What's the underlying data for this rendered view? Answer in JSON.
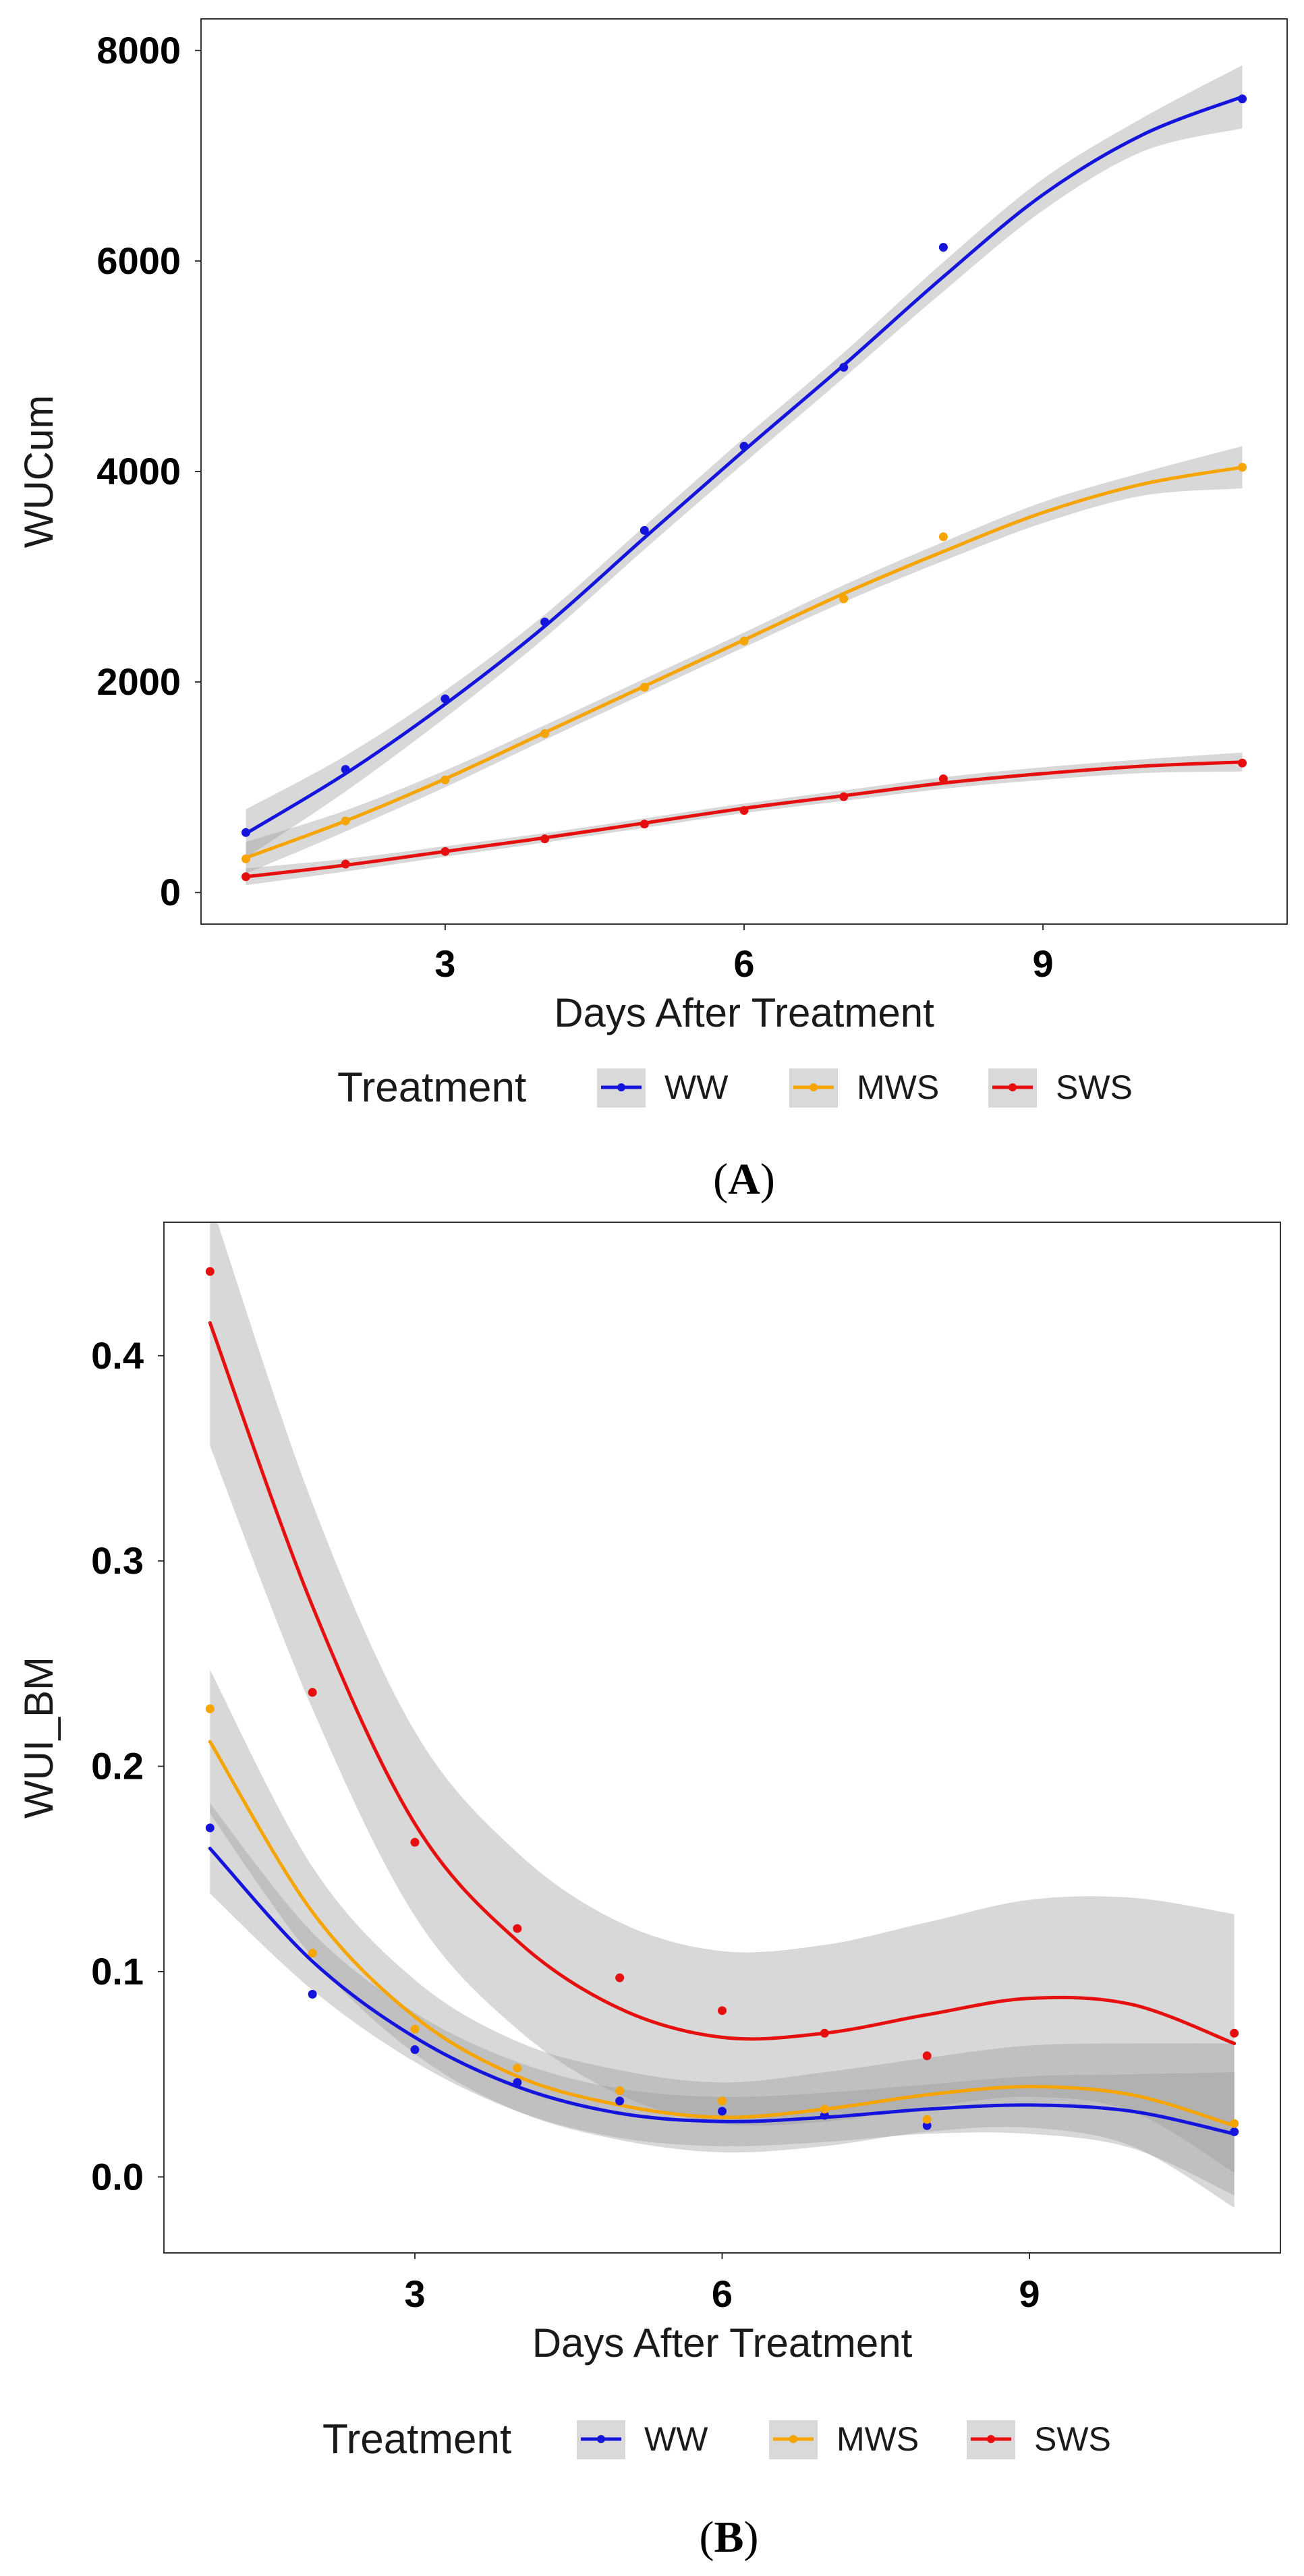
{
  "chart_data": [
    {
      "type": "line",
      "panel_label": "A",
      "xlabel": "Days After Treatment",
      "ylabel": "WUCum",
      "xlim": [
        0.55,
        11.45
      ],
      "ylim": [
        -300,
        8300
      ],
      "xticks": [
        3,
        6,
        9
      ],
      "yticks": [
        0,
        2000,
        4000,
        6000,
        8000
      ],
      "grid": false,
      "smooth": true,
      "confidence_band": true,
      "legend": {
        "title": "Treatment",
        "position": "bottom",
        "entries": [
          "WW",
          "MWS",
          "SWS"
        ]
      },
      "x": [
        1,
        2,
        3,
        4,
        5,
        6,
        7,
        8,
        11
      ],
      "series": [
        {
          "name": "WW",
          "color": "#1414dc",
          "values": [
            570,
            1170,
            1840,
            2570,
            3440,
            4240,
            4990,
            6130,
            7540
          ],
          "fit": [
            [
              1,
              560
            ],
            [
              2,
              1130
            ],
            [
              3,
              1790
            ],
            [
              4,
              2530
            ],
            [
              5,
              3370
            ],
            [
              6,
              4200
            ],
            [
              7,
              5010
            ],
            [
              8,
              5850
            ],
            [
              9,
              6630
            ],
            [
              10,
              7200
            ],
            [
              11,
              7560
            ]
          ],
          "band_half_width": [
            [
              1,
              230
            ],
            [
              2,
              170
            ],
            [
              3,
              130
            ],
            [
              4,
              110
            ],
            [
              5,
              110
            ],
            [
              6,
              120
            ],
            [
              7,
              120
            ],
            [
              8,
              140
            ],
            [
              9,
              150
            ],
            [
              10,
              160
            ],
            [
              11,
              300
            ]
          ]
        },
        {
          "name": "MWS",
          "color": "#f5a400",
          "values": [
            320,
            680,
            1070,
            1510,
            1950,
            2390,
            2790,
            3380,
            4040
          ],
          "fit": [
            [
              1,
              330
            ],
            [
              2,
              680
            ],
            [
              3,
              1080
            ],
            [
              4,
              1520
            ],
            [
              5,
              1960
            ],
            [
              6,
              2400
            ],
            [
              7,
              2840
            ],
            [
              8,
              3240
            ],
            [
              9,
              3610
            ],
            [
              10,
              3880
            ],
            [
              11,
              4040
            ]
          ],
          "band_half_width": [
            [
              1,
              150
            ],
            [
              2,
              100
            ],
            [
              3,
              80
            ],
            [
              4,
              70
            ],
            [
              5,
              70
            ],
            [
              6,
              70
            ],
            [
              7,
              80
            ],
            [
              8,
              90
            ],
            [
              9,
              100
            ],
            [
              10,
              110
            ],
            [
              11,
              200
            ]
          ]
        },
        {
          "name": "SWS",
          "color": "#e60f0f",
          "values": [
            150,
            270,
            390,
            510,
            650,
            780,
            910,
            1080,
            1230
          ],
          "fit": [
            [
              1,
              150
            ],
            [
              2,
              260
            ],
            [
              3,
              390
            ],
            [
              4,
              520
            ],
            [
              5,
              660
            ],
            [
              6,
              800
            ],
            [
              7,
              920
            ],
            [
              8,
              1040
            ],
            [
              9,
              1130
            ],
            [
              10,
              1200
            ],
            [
              11,
              1240
            ]
          ],
          "band_half_width": [
            [
              1,
              80
            ],
            [
              2,
              60
            ],
            [
              3,
              50
            ],
            [
              4,
              45
            ],
            [
              5,
              45
            ],
            [
              6,
              45
            ],
            [
              7,
              50
            ],
            [
              8,
              55
            ],
            [
              9,
              60
            ],
            [
              10,
              65
            ],
            [
              11,
              90
            ]
          ]
        }
      ]
    },
    {
      "type": "line",
      "panel_label": "B",
      "xlabel": "Days After Treatment",
      "ylabel": "WUI_BM",
      "xlim": [
        0.55,
        11.45
      ],
      "ylim": [
        -0.037,
        0.465
      ],
      "xticks": [
        3,
        6,
        9
      ],
      "yticks": [
        0.0,
        0.1,
        0.2,
        0.3,
        0.4
      ],
      "ytick_labels": [
        "0.0",
        "0.1",
        "0.2",
        "0.3",
        "0.4"
      ],
      "grid": false,
      "smooth": true,
      "confidence_band": true,
      "legend": {
        "title": "Treatment",
        "position": "bottom",
        "entries": [
          "WW",
          "MWS",
          "SWS"
        ]
      },
      "x": [
        1,
        2,
        3,
        4,
        5,
        6,
        7,
        8,
        11
      ],
      "series": [
        {
          "name": "WW",
          "color": "#1414dc",
          "values": [
            0.17,
            0.089,
            0.062,
            0.046,
            0.037,
            0.032,
            0.03,
            0.025,
            0.022
          ],
          "fit": [
            [
              1,
              0.16
            ],
            [
              2,
              0.105
            ],
            [
              3,
              0.068
            ],
            [
              4,
              0.044
            ],
            [
              5,
              0.031
            ],
            [
              6,
              0.027
            ],
            [
              7,
              0.029
            ],
            [
              8,
              0.033
            ],
            [
              9,
              0.035
            ],
            [
              10,
              0.032
            ],
            [
              11,
              0.021
            ]
          ],
          "band_half_width": [
            [
              1,
              0.022
            ],
            [
              2,
              0.014
            ],
            [
              3,
              0.012
            ],
            [
              4,
              0.012
            ],
            [
              5,
              0.012
            ],
            [
              6,
              0.012
            ],
            [
              7,
              0.012
            ],
            [
              8,
              0.012
            ],
            [
              9,
              0.014
            ],
            [
              10,
              0.018
            ],
            [
              11,
              0.03
            ]
          ]
        },
        {
          "name": "MWS",
          "color": "#f5a400",
          "values": [
            0.228,
            0.109,
            0.072,
            0.053,
            0.042,
            0.037,
            0.033,
            0.028,
            0.026
          ],
          "fit": [
            [
              1,
              0.212
            ],
            [
              2,
              0.129
            ],
            [
              3,
              0.078
            ],
            [
              4,
              0.049
            ],
            [
              5,
              0.035
            ],
            [
              6,
              0.029
            ],
            [
              7,
              0.033
            ],
            [
              8,
              0.04
            ],
            [
              9,
              0.044
            ],
            [
              10,
              0.04
            ],
            [
              11,
              0.025
            ]
          ],
          "band_half_width": [
            [
              1,
              0.035
            ],
            [
              2,
              0.022
            ],
            [
              3,
              0.018
            ],
            [
              4,
              0.017
            ],
            [
              5,
              0.017
            ],
            [
              6,
              0.017
            ],
            [
              7,
              0.018
            ],
            [
              8,
              0.018
            ],
            [
              9,
              0.02
            ],
            [
              10,
              0.025
            ],
            [
              11,
              0.04
            ]
          ]
        },
        {
          "name": "SWS",
          "color": "#e60f0f",
          "values": [
            0.441,
            0.236,
            0.163,
            0.121,
            0.097,
            0.081,
            0.07,
            0.059,
            0.07
          ],
          "fit": [
            [
              1,
              0.416
            ],
            [
              2,
              0.278
            ],
            [
              3,
              0.172
            ],
            [
              4,
              0.115
            ],
            [
              5,
              0.082
            ],
            [
              6,
              0.068
            ],
            [
              7,
              0.07
            ],
            [
              8,
              0.079
            ],
            [
              9,
              0.087
            ],
            [
              10,
              0.084
            ],
            [
              11,
              0.065
            ]
          ],
          "band_half_width": [
            [
              1,
              0.06
            ],
            [
              2,
              0.05
            ],
            [
              3,
              0.045
            ],
            [
              4,
              0.043
            ],
            [
              5,
              0.042
            ],
            [
              6,
              0.042
            ],
            [
              7,
              0.043
            ],
            [
              8,
              0.045
            ],
            [
              9,
              0.048
            ],
            [
              10,
              0.052
            ],
            [
              11,
              0.063
            ]
          ]
        }
      ]
    }
  ]
}
